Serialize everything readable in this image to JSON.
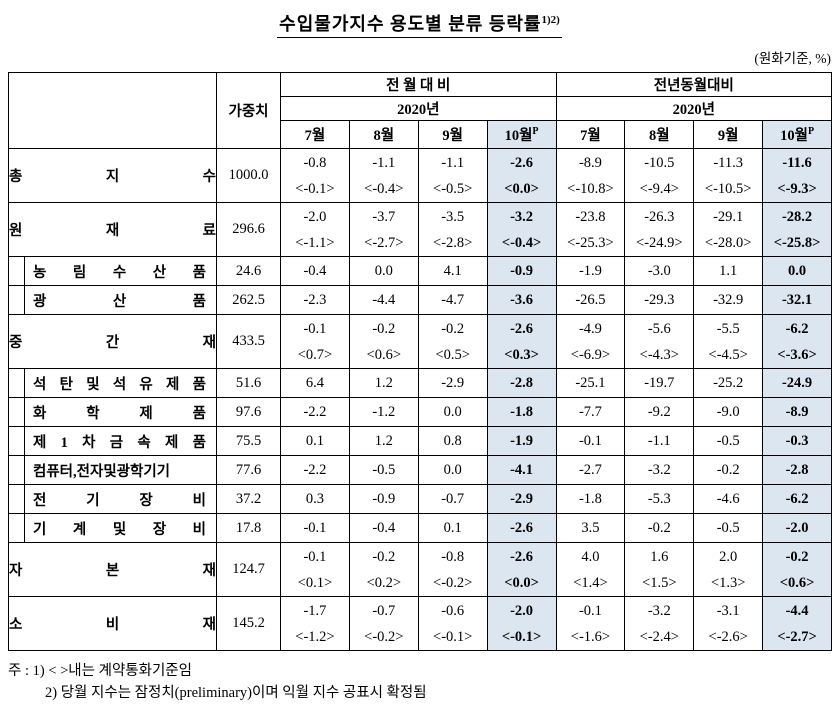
{
  "title": "수입물가지수 용도별 분류 등락률",
  "title_sup": "1)2)",
  "unit_note": "(원화기준, %)",
  "header": {
    "weight": "가중치",
    "mom_group": "전 월 대 비",
    "yoy_group": "전년동월대비",
    "year": "2020년",
    "months": [
      "7월",
      "8월",
      "9월",
      "10월"
    ],
    "month_sup": "P"
  },
  "rows": [
    {
      "label": "총 지 수",
      "sub": false,
      "weight": "1000.0",
      "mom": [
        "-0.8",
        "-1.1",
        "-1.1",
        "-2.6"
      ],
      "mom_sub": [
        "<-0.1>",
        "<-0.4>",
        "<-0.5>",
        "<0.0>"
      ],
      "yoy": [
        "-8.9",
        "-10.5",
        "-11.3",
        "-11.6"
      ],
      "yoy_sub": [
        "<-10.8>",
        "<-9.4>",
        "<-10.5>",
        "<-9.3>"
      ]
    },
    {
      "label": "원 재 료",
      "sub": false,
      "weight": "296.6",
      "mom": [
        "-2.0",
        "-3.7",
        "-3.5",
        "-3.2"
      ],
      "mom_sub": [
        "<-1.1>",
        "<-2.7>",
        "<-2.8>",
        "<-0.4>"
      ],
      "yoy": [
        "-23.8",
        "-26.3",
        "-29.1",
        "-28.2"
      ],
      "yoy_sub": [
        "<-25.3>",
        "<-24.9>",
        "<-28.0>",
        "<-25.8>"
      ]
    },
    {
      "label": "농 림 수 산 품",
      "sub": true,
      "weight": "24.6",
      "mom": [
        "-0.4",
        "0.0",
        "4.1",
        "-0.9"
      ],
      "yoy": [
        "-1.9",
        "-3.0",
        "1.1",
        "0.0"
      ]
    },
    {
      "label": "광 산 품",
      "sub": true,
      "weight": "262.5",
      "mom": [
        "-2.3",
        "-4.4",
        "-4.7",
        "-3.6"
      ],
      "yoy": [
        "-26.5",
        "-29.3",
        "-32.9",
        "-32.1"
      ]
    },
    {
      "label": "중 간 재",
      "sub": false,
      "weight": "433.5",
      "mom": [
        "-0.1",
        "-0.2",
        "-0.2",
        "-2.6"
      ],
      "mom_sub": [
        "<0.7>",
        "<0.6>",
        "<0.5>",
        "<0.3>"
      ],
      "yoy": [
        "-4.9",
        "-5.6",
        "-5.5",
        "-6.2"
      ],
      "yoy_sub": [
        "<-6.9>",
        "<-4.3>",
        "<-4.5>",
        "<-3.6>"
      ]
    },
    {
      "label": "석 탄 및 석 유 제 품",
      "sub": true,
      "weight": "51.6",
      "mom": [
        "6.4",
        "1.2",
        "-2.9",
        "-2.8"
      ],
      "yoy": [
        "-25.1",
        "-19.7",
        "-25.2",
        "-24.9"
      ]
    },
    {
      "label": "화 학 제 품",
      "sub": true,
      "weight": "97.6",
      "mom": [
        "-2.2",
        "-1.2",
        "0.0",
        "-1.8"
      ],
      "yoy": [
        "-7.7",
        "-9.2",
        "-9.0",
        "-8.9"
      ]
    },
    {
      "label": "제 1 차 금 속 제 품",
      "sub": true,
      "weight": "75.5",
      "mom": [
        "0.1",
        "1.2",
        "0.8",
        "-1.9"
      ],
      "yoy": [
        "-0.1",
        "-1.1",
        "-0.5",
        "-0.3"
      ]
    },
    {
      "label": "컴퓨터,전자및광학기기",
      "sub": true,
      "weight": "77.6",
      "mom": [
        "-2.2",
        "-0.5",
        "0.0",
        "-4.1"
      ],
      "yoy": [
        "-2.7",
        "-3.2",
        "-0.2",
        "-2.8"
      ]
    },
    {
      "label": "전 기 장 비",
      "sub": true,
      "weight": "37.2",
      "mom": [
        "0.3",
        "-0.9",
        "-0.7",
        "-2.9"
      ],
      "yoy": [
        "-1.8",
        "-5.3",
        "-4.6",
        "-6.2"
      ]
    },
    {
      "label": "기 계 및 장 비",
      "sub": true,
      "weight": "17.8",
      "mom": [
        "-0.1",
        "-0.4",
        "0.1",
        "-2.6"
      ],
      "yoy": [
        "3.5",
        "-0.2",
        "-0.5",
        "-2.0"
      ]
    },
    {
      "label": "자 본 재",
      "sub": false,
      "weight": "124.7",
      "mom": [
        "-0.1",
        "-0.2",
        "-0.8",
        "-2.6"
      ],
      "mom_sub": [
        "<0.1>",
        "<0.2>",
        "<-0.2>",
        "<0.0>"
      ],
      "yoy": [
        "4.0",
        "1.6",
        "2.0",
        "-0.2"
      ],
      "yoy_sub": [
        "<1.4>",
        "<1.5>",
        "<1.3>",
        "<0.6>"
      ]
    },
    {
      "label": "소 비 재",
      "sub": false,
      "weight": "145.2",
      "mom": [
        "-1.7",
        "-0.7",
        "-0.6",
        "-2.0"
      ],
      "mom_sub": [
        "<-1.2>",
        "<-0.2>",
        "<-0.1>",
        "<-0.1>"
      ],
      "yoy": [
        "-0.1",
        "-3.2",
        "-3.1",
        "-4.4"
      ],
      "yoy_sub": [
        "<-1.6>",
        "<-2.4>",
        "<-2.6>",
        "<-2.7>"
      ]
    }
  ],
  "notes": [
    "주 : 1) < >내는 계약통화기준임",
    "2) 당월 지수는 잠정치(preliminary)이며 익월 지수 공표시 확정됨"
  ],
  "colors": {
    "highlight": "#dce6f1",
    "border": "#000000"
  }
}
